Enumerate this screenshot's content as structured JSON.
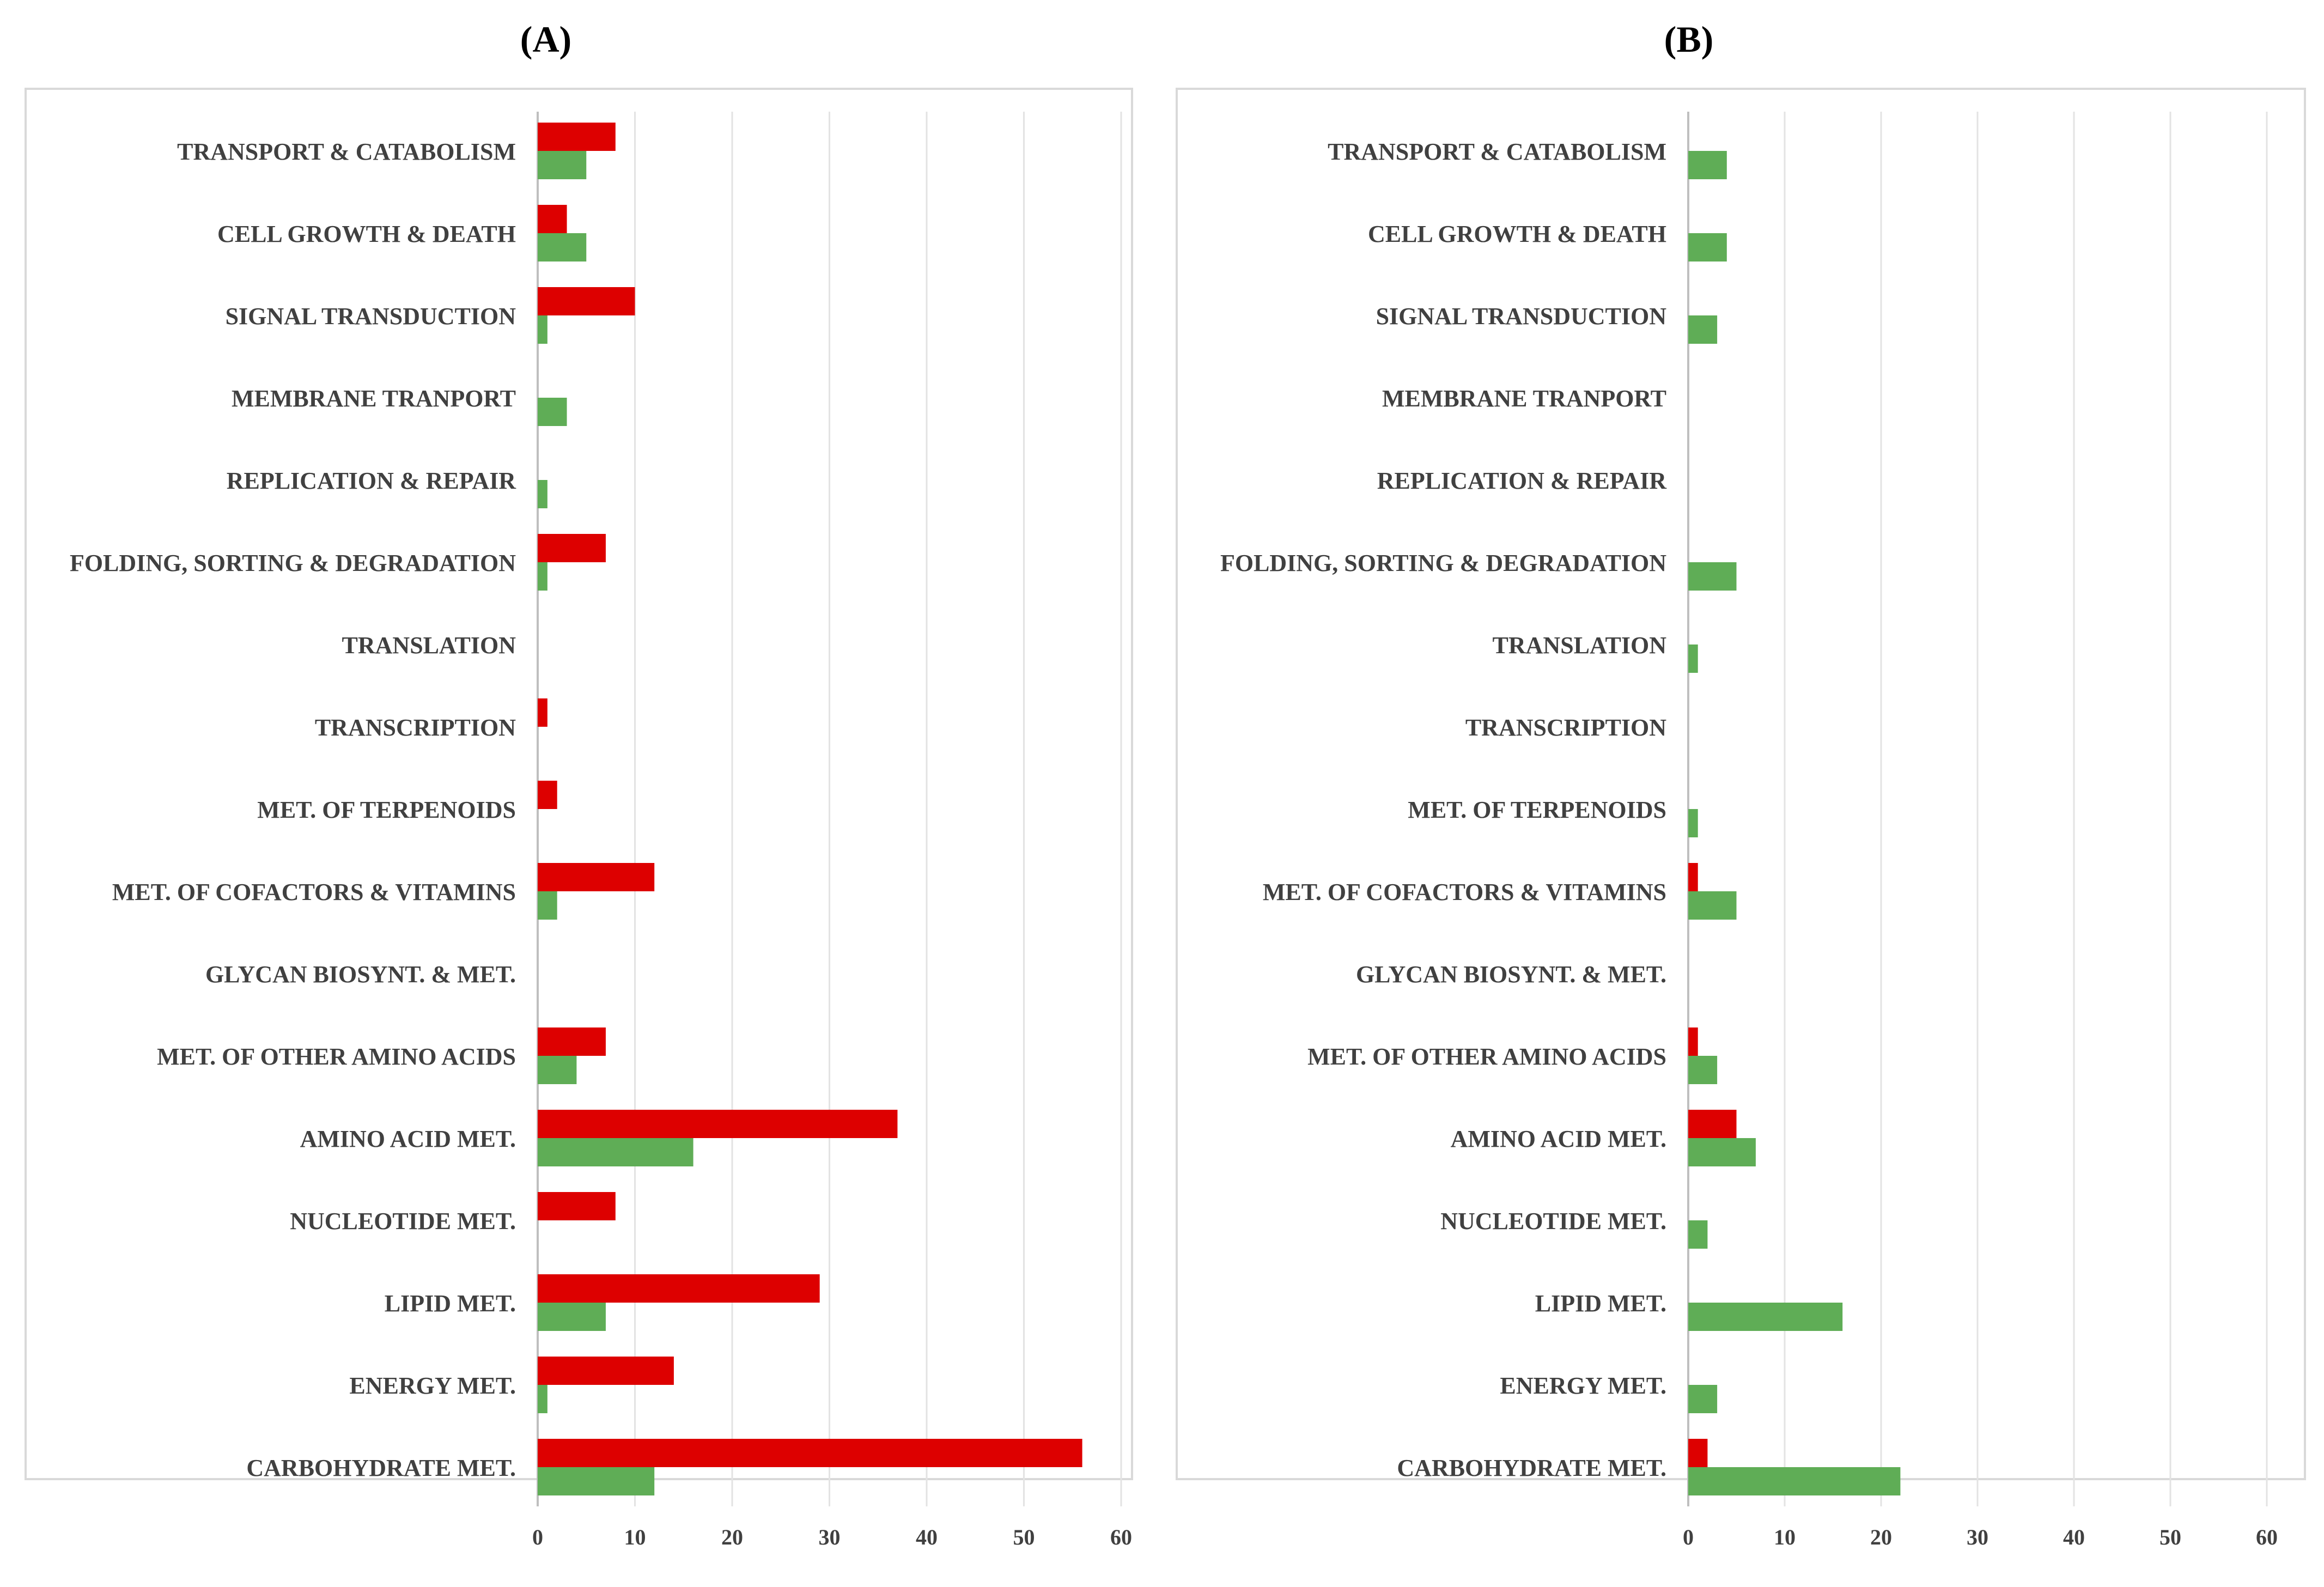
{
  "chart_data": [
    {
      "type": "bar",
      "orientation": "horizontal",
      "title": "(A)",
      "categories": [
        "TRANSPORT & CATABOLISM",
        "CELL GROWTH & DEATH",
        "SIGNAL TRANSDUCTION",
        "MEMBRANE TRANPORT",
        "REPLICATION & REPAIR",
        "FOLDING, SORTING & DEGRADATION",
        "TRANSLATION",
        "TRANSCRIPTION",
        "MET. OF TERPENOIDS",
        "MET. OF COFACTORS & VITAMINS",
        "GLYCAN BIOSYNT. & MET.",
        "MET. OF OTHER AMINO ACIDS",
        "AMINO ACID MET.",
        "NUCLEOTIDE MET.",
        "LIPID MET.",
        "ENERGY MET.",
        "CARBOHYDRATE MET."
      ],
      "series": [
        {
          "name": "red",
          "color": "#dd0000",
          "values": [
            8,
            3,
            10,
            0,
            0,
            7,
            0,
            1,
            2,
            12,
            0,
            7,
            37,
            8,
            29,
            14,
            56
          ]
        },
        {
          "name": "green",
          "color": "#5fad56",
          "values": [
            5,
            5,
            1,
            3,
            1,
            1,
            0,
            0,
            0,
            2,
            0,
            4,
            16,
            0,
            7,
            1,
            12
          ]
        }
      ],
      "xlim": [
        0,
        60
      ],
      "xticks": [
        0,
        10,
        20,
        30,
        40,
        50,
        60
      ],
      "xlabel": "",
      "ylabel": "",
      "grid": true,
      "legend": "none"
    },
    {
      "type": "bar",
      "orientation": "horizontal",
      "title": "(B)",
      "categories": [
        "TRANSPORT & CATABOLISM",
        "CELL GROWTH & DEATH",
        "SIGNAL TRANSDUCTION",
        "MEMBRANE TRANPORT",
        "REPLICATION & REPAIR",
        "FOLDING, SORTING & DEGRADATION",
        "TRANSLATION",
        "TRANSCRIPTION",
        "MET. OF TERPENOIDS",
        "MET. OF COFACTORS & VITAMINS",
        "GLYCAN BIOSYNT. & MET.",
        "MET. OF OTHER AMINO ACIDS",
        "AMINO ACID MET.",
        "NUCLEOTIDE MET.",
        "LIPID MET.",
        "ENERGY MET.",
        "CARBOHYDRATE MET."
      ],
      "series": [
        {
          "name": "red",
          "color": "#dd0000",
          "values": [
            0,
            0,
            0,
            0,
            0,
            0,
            0,
            0,
            0,
            1,
            0,
            1,
            5,
            0,
            0,
            0,
            2
          ]
        },
        {
          "name": "green",
          "color": "#5fad56",
          "values": [
            4,
            4,
            3,
            0,
            0,
            5,
            1,
            0,
            1,
            5,
            0,
            3,
            7,
            2,
            16,
            3,
            22
          ]
        }
      ],
      "xlim": [
        0,
        60
      ],
      "xticks": [
        0,
        10,
        20,
        30,
        40,
        50,
        60
      ],
      "xlabel": "",
      "ylabel": "",
      "grid": true,
      "legend": "none"
    }
  ]
}
